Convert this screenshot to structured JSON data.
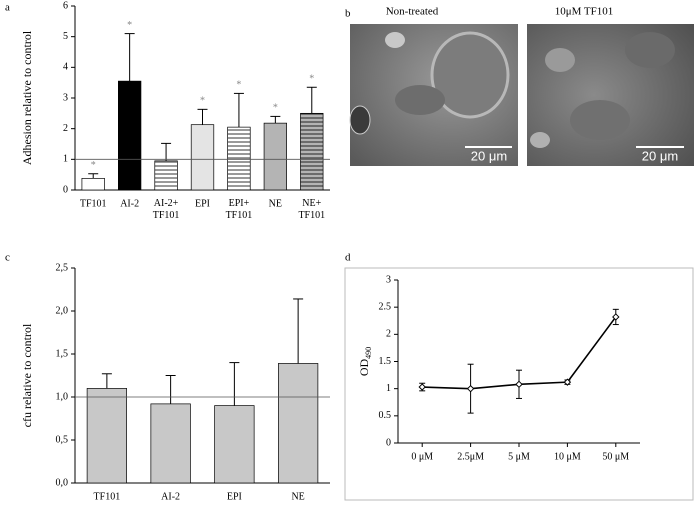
{
  "chart_data": [
    {
      "type": "bar",
      "label": "a",
      "ylabel": "Adhesion relative to control",
      "categories": [
        "TF101",
        "AI-2",
        "AI-2+ TF101",
        "EPI",
        "EPI+ TF101",
        "NE",
        "NE+ TF101"
      ],
      "values": [
        0.38,
        3.55,
        0.95,
        2.13,
        2.05,
        2.18,
        2.5
      ],
      "errors": [
        0.15,
        1.55,
        0.57,
        0.5,
        1.1,
        0.22,
        0.85
      ],
      "annotations": [
        "*",
        "*",
        null,
        "*",
        "*",
        "*",
        "*"
      ],
      "colors": [
        "#ffffff",
        "#000000",
        "#ffffff",
        "#e4e4e4",
        "#ffffff",
        "#b4b4b4",
        "#b4b4b4"
      ],
      "hatch": [
        false,
        false,
        true,
        false,
        true,
        false,
        true
      ],
      "reference_line": 1,
      "ylim": [
        0,
        6
      ],
      "yticks": [
        0,
        1,
        2,
        3,
        4,
        5,
        6
      ]
    },
    {
      "type": "bar",
      "label": "c",
      "ylabel": "cfu relative to control",
      "categories": [
        "TF101",
        "AI-2",
        "EPI",
        "NE"
      ],
      "values": [
        1.1,
        0.92,
        0.9,
        1.39
      ],
      "errors": [
        0.17,
        0.33,
        0.5,
        0.75
      ],
      "colors": [
        "#c8c8c8",
        "#c8c8c8",
        "#c8c8c8",
        "#c8c8c8"
      ],
      "reference_line": 1,
      "ylim": [
        0,
        2.5
      ],
      "yticks": [
        {
          "value": 0,
          "label": "0,0"
        },
        {
          "value": 0.5,
          "label": "0,5"
        },
        {
          "value": 1,
          "label": "1,0"
        },
        {
          "value": 1.5,
          "label": "1,5"
        },
        {
          "value": 2,
          "label": "2,0"
        },
        {
          "value": 2.5,
          "label": "2,5"
        }
      ]
    },
    {
      "type": "line",
      "label": "d",
      "ylabel": "OD",
      "ylabel_subscript": "490",
      "categories": [
        "0 μM",
        "2.5μM",
        "5 μM",
        "10 μM",
        "50 μM"
      ],
      "values": [
        1.03,
        1.0,
        1.08,
        1.12,
        2.32
      ],
      "errors": [
        0.07,
        0.45,
        0.26,
        0.04,
        0.14
      ],
      "color": "#000000",
      "ylim": [
        0,
        3
      ],
      "yticks": [
        0,
        0.5,
        1,
        1.5,
        2,
        2.5,
        3
      ]
    }
  ],
  "micrographs": {
    "label": "b",
    "titles": [
      "Non-treated",
      "10μM TF101"
    ],
    "scale_bar": "20 μm"
  }
}
